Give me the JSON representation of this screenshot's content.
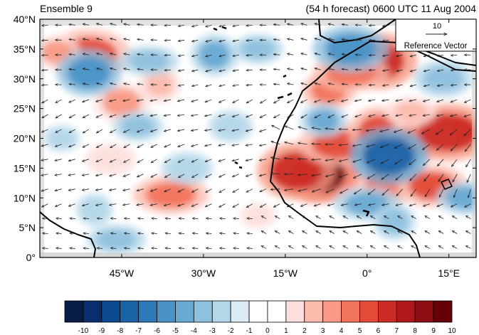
{
  "chart_data": {
    "type": "heatmap",
    "title_left": "Ensemble 9",
    "title_right": "(54 h forecast) 0600 UTC 11 Aug 2004",
    "x_axis": {
      "range_deg": [
        -60,
        20
      ],
      "ticks": [
        {
          "value": -45,
          "label": "45°W"
        },
        {
          "value": -30,
          "label": "30°W"
        },
        {
          "value": -15,
          "label": "15°W"
        },
        {
          "value": 0,
          "label": "0°"
        },
        {
          "value": 15,
          "label": "15°E"
        }
      ]
    },
    "y_axis": {
      "range_deg": [
        0,
        40
      ],
      "ticks": [
        {
          "value": 0,
          "label": "0°"
        },
        {
          "value": 5,
          "label": "5°N"
        },
        {
          "value": 10,
          "label": "10°N"
        },
        {
          "value": 15,
          "label": "15°N"
        },
        {
          "value": 20,
          "label": "20°N"
        },
        {
          "value": 25,
          "label": "25°N"
        },
        {
          "value": 30,
          "label": "30°N"
        },
        {
          "value": 35,
          "label": "35°N"
        },
        {
          "value": 40,
          "label": "40°N"
        }
      ]
    },
    "reference_vector": {
      "value": "10",
      "label": "Reference Vector"
    },
    "colorbar": {
      "labels": [
        "-10",
        "-9",
        "-8",
        "-7",
        "-6",
        "-5",
        "-4",
        "-3",
        "-2",
        "-1",
        "0",
        "1",
        "2",
        "3",
        "4",
        "5",
        "6",
        "7",
        "8",
        "9",
        "10"
      ],
      "colors": [
        "#081d44",
        "#082e6b",
        "#0b4a8f",
        "#1c64a8",
        "#2e79b8",
        "#4a93c8",
        "#69aad3",
        "#8fc1de",
        "#b5d7ea",
        "#dbecf6",
        "#ffffff",
        "#ffffff",
        "#fde0dd",
        "#fbbcae",
        "#f89a85",
        "#f2735b",
        "#e34a37",
        "#cc2b25",
        "#b0171c",
        "#8c0d13",
        "#650008"
      ]
    },
    "anomaly_features": [
      {
        "lon": -9,
        "lat": 14,
        "value": 10
      },
      {
        "lon": -13,
        "lat": 14.5,
        "value": 7
      },
      {
        "lon": -5,
        "lat": 19,
        "value": 6
      },
      {
        "lon": 2,
        "lat": 21,
        "value": 6
      },
      {
        "lon": 10,
        "lat": 20,
        "value": 6
      },
      {
        "lon": 15,
        "lat": 21,
        "value": 7
      },
      {
        "lon": -7,
        "lat": 28,
        "value": 5
      },
      {
        "lon": 2,
        "lat": 33,
        "value": 7
      },
      {
        "lon": -3,
        "lat": 31,
        "value": 5
      },
      {
        "lon": 3,
        "lat": 12,
        "value": 5
      },
      {
        "lon": 12,
        "lat": 12,
        "value": 6
      },
      {
        "lon": -51,
        "lat": 34,
        "value": 6
      },
      {
        "lon": -57,
        "lat": 34.5,
        "value": 4
      },
      {
        "lon": -45,
        "lat": 26,
        "value": 4
      },
      {
        "lon": -36,
        "lat": 10.5,
        "value": 5
      },
      {
        "lon": -38,
        "lat": 29,
        "value": 3
      },
      {
        "lon": 8,
        "lat": 24.5,
        "value": 3
      },
      {
        "lon": -47,
        "lat": 16.5,
        "value": 2
      },
      {
        "lon": -20,
        "lat": 7,
        "value": 2
      },
      {
        "lon": -51,
        "lat": 31,
        "value": -5
      },
      {
        "lon": -40,
        "lat": 33,
        "value": -3
      },
      {
        "lon": -28,
        "lat": 34,
        "value": -4
      },
      {
        "lon": -20,
        "lat": 35,
        "value": -3
      },
      {
        "lon": -3,
        "lat": 35,
        "value": -5
      },
      {
        "lon": -8,
        "lat": 23,
        "value": -4
      },
      {
        "lon": 4,
        "lat": 17,
        "value": -7
      },
      {
        "lon": 0,
        "lat": 9,
        "value": -4
      },
      {
        "lon": 5,
        "lat": 6,
        "value": -3
      },
      {
        "lon": -42,
        "lat": 22,
        "value": -3
      },
      {
        "lon": -33,
        "lat": 15,
        "value": -2
      },
      {
        "lon": -56,
        "lat": 20,
        "value": -2
      },
      {
        "lon": -25,
        "lat": 22,
        "value": -2
      },
      {
        "lon": -46,
        "lat": 3,
        "value": -3
      },
      {
        "lon": -50,
        "lat": 8,
        "value": -2
      },
      {
        "lon": 18,
        "lat": 10,
        "value": -4
      },
      {
        "lon": 14,
        "lat": 30,
        "value": -3
      }
    ]
  }
}
